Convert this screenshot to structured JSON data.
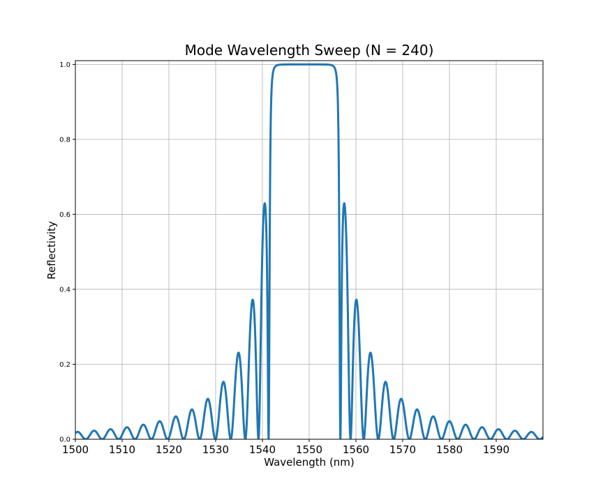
{
  "chart_data": {
    "type": "line",
    "title": "Mode Wavelength Sweep (N = 240)",
    "xlabel": "Wavelength (nm)",
    "ylabel": "Reflectivity",
    "xlim": [
      1500,
      1600
    ],
    "ylim": [
      0.0,
      1.01
    ],
    "xticks": [
      1500,
      1510,
      1520,
      1530,
      1540,
      1550,
      1560,
      1570,
      1580,
      1590
    ],
    "xtick_labels": [
      "1500",
      "1510",
      "1520",
      "1530",
      "1540",
      "1550",
      "1560",
      "1570",
      "1580",
      "1590"
    ],
    "yticks": [
      0.0,
      0.2,
      0.4,
      0.6,
      0.8,
      1.0
    ],
    "ytick_labels": [
      "0.0",
      "0.2",
      "0.4",
      "0.6",
      "0.8",
      "1.0"
    ],
    "grid": true,
    "legend": "none",
    "color": "#1f77b4",
    "model": {
      "center_wavelength": 1549,
      "bandwidth_edges": [
        1542.2,
        1555.8
      ],
      "periods": 240
    },
    "series": [
      {
        "x": [
          1500,
          1503.4,
          1506.4,
          1509.5,
          1512.5,
          1515.5,
          1518.5,
          1521.4,
          1524.4,
          1527.4,
          1530.4,
          1533.4,
          1536.3,
          1538.8,
          1541.0,
          1542.2,
          1543,
          1548,
          1554,
          1555.4,
          1555.8,
          1556.7,
          1558.9,
          1561.4,
          1564.1,
          1567.2,
          1570.3,
          1573.4,
          1576.5,
          1579.8,
          1583.0,
          1586.2,
          1589.5,
          1592.7,
          1595.9,
          1598.9,
          1600
        ],
        "y": [
          0.013,
          0.015,
          0.017,
          0.02,
          0.024,
          0.029,
          0.036,
          0.045,
          0.057,
          0.075,
          0.102,
          0.145,
          0.22,
          0.36,
          0.615,
          0.0,
          0.98,
          1.0,
          0.99,
          0.95,
          0.0,
          0.615,
          0.36,
          0.22,
          0.145,
          0.102,
          0.075,
          0.057,
          0.045,
          0.036,
          0.029,
          0.024,
          0.02,
          0.017,
          0.015,
          0.014,
          0.013
        ]
      }
    ]
  }
}
